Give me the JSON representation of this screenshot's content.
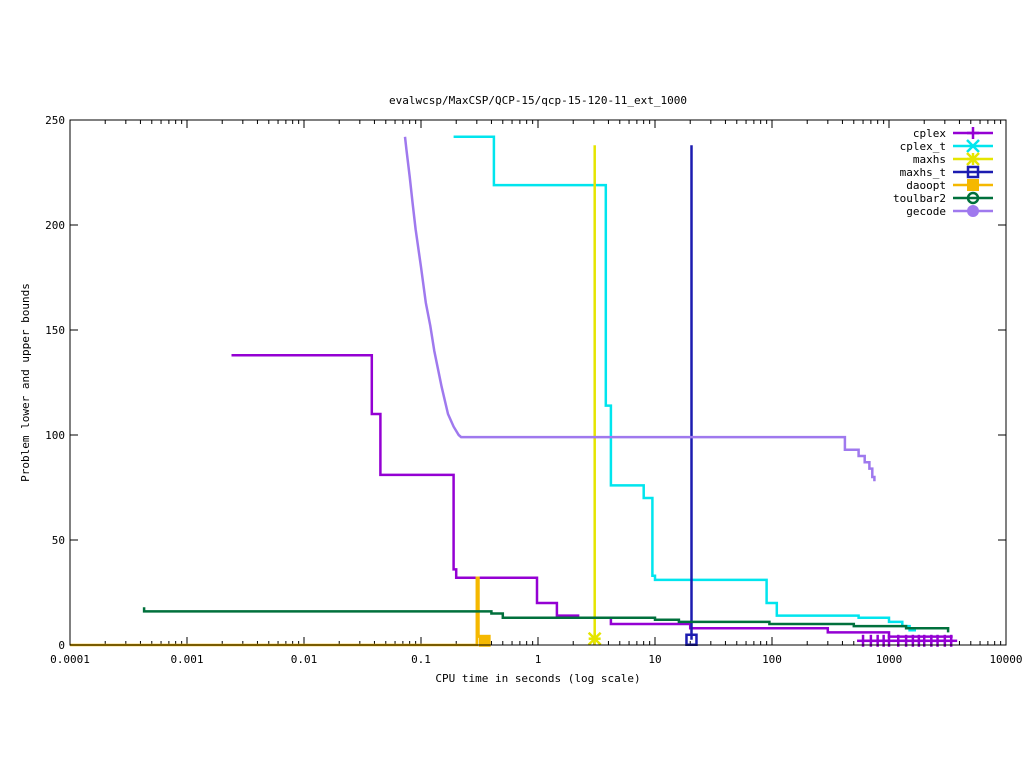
{
  "chart_data": {
    "type": "line",
    "title": "evalwcsp/MaxCSP/QCP-15/qcp-15-120-11_ext_1000",
    "xlabel": "CPU time in seconds (log scale)",
    "ylabel": "Problem lower and upper bounds",
    "xscale": "log",
    "xlim": [
      0.0001,
      10000
    ],
    "ylim": [
      0,
      250
    ],
    "x_ticks": [
      {
        "value": 0.0001,
        "label": "0.0001"
      },
      {
        "value": 0.001,
        "label": "0.001"
      },
      {
        "value": 0.01,
        "label": "0.01"
      },
      {
        "value": 0.1,
        "label": "0.1"
      },
      {
        "value": 1,
        "label": "1"
      },
      {
        "value": 10,
        "label": "10"
      },
      {
        "value": 100,
        "label": "100"
      },
      {
        "value": 1000,
        "label": "1000"
      },
      {
        "value": 10000,
        "label": "10000"
      }
    ],
    "y_ticks": [
      {
        "value": 0,
        "label": "0"
      },
      {
        "value": 50,
        "label": "50"
      },
      {
        "value": 100,
        "label": "100"
      },
      {
        "value": 150,
        "label": "150"
      },
      {
        "value": 200,
        "label": "200"
      },
      {
        "value": 250,
        "label": "250"
      }
    ],
    "grid": false,
    "legend_position": "top-right",
    "series": [
      {
        "name": "cplex",
        "color": "#9400d3",
        "marker": "plus",
        "points": [
          [
            0.0024,
            138
          ],
          [
            0.038,
            138
          ],
          [
            0.038,
            110
          ],
          [
            0.045,
            110
          ],
          [
            0.045,
            81
          ],
          [
            0.19,
            81
          ],
          [
            0.19,
            36
          ],
          [
            0.2,
            36
          ],
          [
            0.2,
            32
          ],
          [
            0.98,
            32
          ],
          [
            0.98,
            20
          ],
          [
            1.45,
            20
          ],
          [
            1.45,
            14
          ],
          [
            2.2,
            14
          ],
          [
            2.2,
            13
          ],
          [
            4.2,
            13
          ],
          [
            4.2,
            10
          ],
          [
            20,
            10
          ],
          [
            20,
            8
          ],
          [
            300,
            8
          ],
          [
            300,
            6
          ],
          [
            1000,
            6
          ],
          [
            1000,
            4
          ],
          [
            3500,
            4
          ]
        ],
        "marker_points": [
          [
            600,
            2
          ],
          [
            700,
            2
          ],
          [
            800,
            2
          ],
          [
            900,
            2
          ],
          [
            1000,
            2
          ],
          [
            1200,
            2
          ],
          [
            1400,
            2
          ],
          [
            1600,
            2
          ],
          [
            1800,
            2
          ],
          [
            2000,
            2
          ],
          [
            2300,
            2
          ],
          [
            2600,
            2
          ],
          [
            3000,
            2
          ],
          [
            3400,
            2
          ]
        ]
      },
      {
        "name": "cplex_t",
        "color": "#00e5ee",
        "marker": "cross",
        "points": [
          [
            0.19,
            242
          ],
          [
            0.42,
            242
          ],
          [
            0.42,
            219
          ],
          [
            3.8,
            219
          ],
          [
            3.8,
            114
          ],
          [
            4.2,
            114
          ],
          [
            4.2,
            76
          ],
          [
            8,
            76
          ],
          [
            8,
            70
          ],
          [
            9.5,
            70
          ],
          [
            9.5,
            33
          ],
          [
            10,
            33
          ],
          [
            10,
            31
          ],
          [
            90,
            31
          ],
          [
            90,
            20
          ],
          [
            110,
            20
          ],
          [
            110,
            14
          ],
          [
            550,
            14
          ],
          [
            550,
            13
          ],
          [
            1000,
            13
          ],
          [
            1000,
            11
          ],
          [
            1300,
            11
          ],
          [
            1300,
            9
          ],
          [
            1500,
            9
          ],
          [
            1500,
            7
          ],
          [
            1700,
            7
          ]
        ]
      },
      {
        "name": "maxhs",
        "color": "#e5e500",
        "marker": "star",
        "points": [
          [
            3.05,
            238
          ],
          [
            3.05,
            3
          ]
        ],
        "marker_points": [
          [
            3.05,
            3
          ]
        ]
      },
      {
        "name": "maxhs_t",
        "color": "#1c1cb0",
        "marker": "square",
        "points": [
          [
            20.5,
            238
          ],
          [
            20.5,
            2.5
          ]
        ],
        "marker_points": [
          [
            20.5,
            2.5
          ]
        ]
      },
      {
        "name": "daoopt",
        "color": "#f5b800",
        "marker": "filled-square",
        "points": [
          [
            0.0001,
            0
          ],
          [
            0.3,
            0
          ],
          [
            0.3,
            32
          ],
          [
            0.31,
            32
          ],
          [
            0.31,
            4
          ],
          [
            0.36,
            4
          ],
          [
            0.36,
            2
          ]
        ],
        "marker_points": [
          [
            0.35,
            2
          ]
        ]
      },
      {
        "name": "toulbar2",
        "color": "#00703c",
        "marker": "circle",
        "points": [
          [
            0.00043,
            18
          ],
          [
            0.00043,
            16
          ],
          [
            0.4,
            16
          ],
          [
            0.4,
            15
          ],
          [
            0.5,
            15
          ],
          [
            0.5,
            13
          ],
          [
            10,
            13
          ],
          [
            10,
            12
          ],
          [
            16,
            12
          ],
          [
            16,
            11
          ],
          [
            95,
            11
          ],
          [
            95,
            10
          ],
          [
            500,
            10
          ],
          [
            500,
            9
          ],
          [
            1400,
            9
          ],
          [
            1400,
            8
          ],
          [
            3200,
            8
          ],
          [
            3200,
            6
          ]
        ]
      },
      {
        "name": "gecode",
        "color": "#9f79ee",
        "marker": "filled-circle",
        "points": [
          [
            0.073,
            242
          ],
          [
            0.075,
            236
          ],
          [
            0.08,
            223
          ],
          [
            0.085,
            210
          ],
          [
            0.09,
            198
          ],
          [
            0.1,
            180
          ],
          [
            0.11,
            163
          ],
          [
            0.12,
            152
          ],
          [
            0.13,
            140
          ],
          [
            0.15,
            123
          ],
          [
            0.17,
            110
          ],
          [
            0.19,
            104
          ],
          [
            0.21,
            100
          ],
          [
            0.22,
            99
          ],
          [
            420,
            99
          ],
          [
            420,
            93
          ],
          [
            550,
            93
          ],
          [
            550,
            90
          ],
          [
            620,
            90
          ],
          [
            620,
            87
          ],
          [
            680,
            87
          ],
          [
            680,
            84
          ],
          [
            720,
            84
          ],
          [
            720,
            80
          ],
          [
            750,
            80
          ],
          [
            750,
            78
          ]
        ]
      }
    ]
  }
}
